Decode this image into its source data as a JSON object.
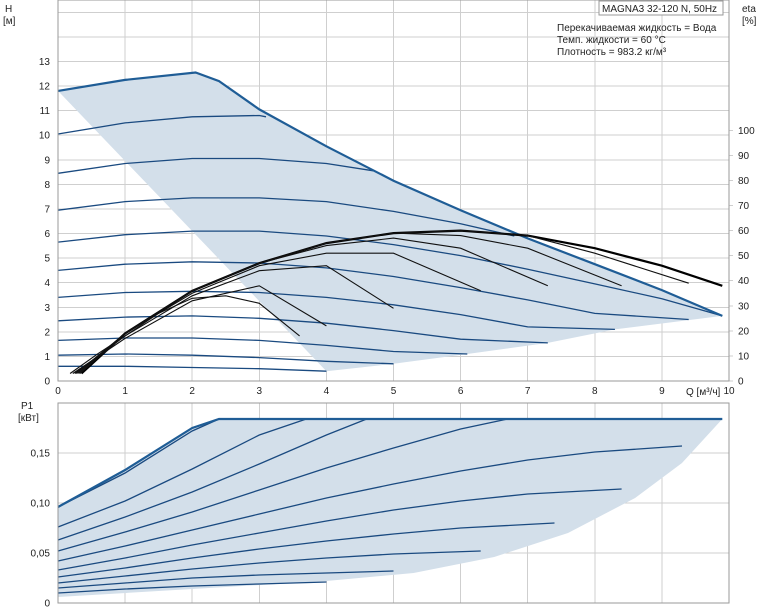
{
  "title": "MAGNA3 32-120 N, 50Hz",
  "conditions": [
    "Перекачиваемая жидкость = Вода",
    "Темп. жидкости = 60 °C",
    "Плотность = 983.2 кг/м³"
  ],
  "colors": {
    "area": "#d3dfea",
    "curve": "#1a4a80",
    "envelope": "#1f5d96",
    "efficiency": "#000000",
    "grid": "#cfcfcf"
  },
  "chart_data": [
    {
      "type": "line",
      "name": "head",
      "ylabel_symbol": "H",
      "ylabel_unit": "[м]",
      "y2label_symbol": "eta",
      "y2label_unit": "[%]",
      "xlabel": "Q [м³/ч]",
      "xlim": [
        0,
        10
      ],
      "ylim": [
        0,
        15.5
      ],
      "y2lim": [
        0,
        152
      ],
      "x_ticks": [
        "0",
        "1",
        "2",
        "3",
        "4",
        "5",
        "6",
        "7",
        "8",
        "9",
        "10"
      ],
      "y_ticks": [
        "0",
        "1",
        "2",
        "3",
        "4",
        "5",
        "6",
        "7",
        "8",
        "9",
        "10",
        "11",
        "12",
        "13"
      ],
      "y2_ticks": [
        "0",
        "10",
        "20",
        "30",
        "40",
        "50",
        "60",
        "70",
        "80",
        "90",
        "100"
      ],
      "grid": true,
      "envelope_upper": [
        [
          0,
          11.8
        ],
        [
          1,
          12.25
        ],
        [
          2.05,
          12.55
        ],
        [
          2.4,
          12.2
        ],
        [
          3,
          11.05
        ],
        [
          4,
          9.55
        ],
        [
          5,
          8.15
        ],
        [
          6,
          6.95
        ],
        [
          7,
          5.8
        ],
        [
          8,
          4.75
        ],
        [
          9,
          3.7
        ],
        [
          9.9,
          2.65
        ]
      ],
      "envelope_lower": [
        [
          9.9,
          2.65
        ],
        [
          8.3,
          2.1
        ],
        [
          7.3,
          1.55
        ],
        [
          6.1,
          1.1
        ],
        [
          5,
          0.7
        ],
        [
          4,
          0.4
        ]
      ],
      "head_curves": [
        {
          "x": [
            0,
            1,
            2,
            3,
            3.1
          ],
          "y": [
            10.05,
            10.5,
            10.75,
            10.8,
            10.75
          ]
        },
        {
          "x": [
            0,
            1,
            2,
            3,
            4,
            4.7
          ],
          "y": [
            8.45,
            8.85,
            9.05,
            9.05,
            8.85,
            8.55
          ]
        },
        {
          "x": [
            0,
            1,
            2,
            3,
            4,
            5,
            6,
            6.8
          ],
          "y": [
            6.95,
            7.3,
            7.45,
            7.45,
            7.3,
            6.9,
            6.4,
            5.9
          ]
        },
        {
          "x": [
            0,
            1,
            2,
            3,
            4,
            5,
            6,
            7,
            8,
            9,
            9.9
          ],
          "y": [
            5.65,
            5.95,
            6.1,
            6.1,
            5.9,
            5.55,
            5.1,
            4.55,
            3.95,
            3.35,
            2.65
          ]
        },
        {
          "x": [
            0,
            1,
            2,
            3,
            4,
            5,
            6,
            7,
            8,
            9.4
          ],
          "y": [
            4.5,
            4.75,
            4.85,
            4.8,
            4.6,
            4.25,
            3.8,
            3.3,
            2.75,
            2.5
          ]
        },
        {
          "x": [
            0,
            1,
            2,
            3,
            4,
            5,
            6,
            7,
            8.3
          ],
          "y": [
            3.4,
            3.6,
            3.65,
            3.6,
            3.4,
            3.1,
            2.7,
            2.2,
            2.1
          ]
        },
        {
          "x": [
            0,
            1,
            2,
            3,
            4,
            5,
            6,
            7.3
          ],
          "y": [
            2.45,
            2.6,
            2.65,
            2.55,
            2.35,
            2.05,
            1.7,
            1.55
          ]
        },
        {
          "x": [
            0,
            1,
            2,
            3,
            4,
            5,
            6.1
          ],
          "y": [
            1.65,
            1.75,
            1.75,
            1.65,
            1.45,
            1.2,
            1.1
          ]
        },
        {
          "x": [
            0,
            1,
            2,
            3,
            4,
            5
          ],
          "y": [
            1.05,
            1.1,
            1.05,
            0.95,
            0.8,
            0.7
          ]
        },
        {
          "x": [
            0,
            1,
            2,
            3,
            4
          ],
          "y": [
            0.6,
            0.6,
            0.55,
            0.5,
            0.4
          ]
        }
      ],
      "efficiency_curves": [
        {
          "bold": true,
          "x": [
            0.35,
            1,
            2,
            3,
            4,
            5,
            6,
            7,
            8,
            9,
            9.9
          ],
          "y": [
            3,
            19,
            36,
            47,
            55,
            59,
            60,
            58,
            53,
            46,
            38
          ]
        },
        {
          "x": [
            0.33,
            1,
            2,
            3,
            4,
            5,
            6,
            7,
            8,
            9.4
          ],
          "y": [
            3,
            19,
            36,
            47,
            55,
            59,
            60,
            58,
            51,
            39
          ]
        },
        {
          "x": [
            0.31,
            1,
            2,
            3,
            4,
            5,
            6,
            7,
            8.4
          ],
          "y": [
            3,
            19,
            36,
            47,
            55,
            59,
            58,
            53,
            38
          ]
        },
        {
          "x": [
            0.29,
            1,
            2,
            3,
            4,
            5,
            6,
            7.3
          ],
          "y": [
            3,
            19,
            36,
            47,
            54,
            57,
            53,
            38
          ]
        },
        {
          "x": [
            0.27,
            1,
            2,
            3,
            4,
            5,
            6.3
          ],
          "y": [
            3,
            19,
            35,
            46,
            51,
            51,
            36
          ]
        },
        {
          "x": [
            0.25,
            1,
            2,
            3,
            4,
            5
          ],
          "y": [
            3,
            18,
            34,
            44,
            46,
            29
          ]
        },
        {
          "x": [
            0.22,
            1,
            2,
            3,
            4
          ],
          "y": [
            3,
            17,
            32,
            38,
            22
          ]
        },
        {
          "x": [
            0.18,
            0.6,
            1,
            1.5,
            2,
            2.5,
            3,
            3.6
          ],
          "y": [
            3,
            11,
            18,
            27,
            33,
            34,
            31,
            18
          ]
        }
      ]
    },
    {
      "type": "line",
      "name": "power",
      "ylabel_symbol": "P1",
      "ylabel_unit": "[кВт]",
      "xlim": [
        0,
        10
      ],
      "ylim": [
        0,
        0.2
      ],
      "y_ticks": [
        "0",
        "0,05",
        "0,10",
        "0,15"
      ],
      "grid": true,
      "envelope_upper": [
        [
          0,
          0.096
        ],
        [
          1,
          0.133
        ],
        [
          2,
          0.175
        ],
        [
          2.4,
          0.184
        ],
        [
          9.9,
          0.184
        ]
      ],
      "envelope_lower": [
        [
          9.9,
          0.184
        ],
        [
          9.3,
          0.14
        ],
        [
          8.6,
          0.105
        ],
        [
          7.6,
          0.07
        ],
        [
          6.5,
          0.046
        ],
        [
          5.3,
          0.03
        ],
        [
          4,
          0.022
        ],
        [
          0,
          0.006
        ]
      ],
      "power_curves": [
        {
          "x": [
            0,
            1,
            2,
            2.4
          ],
          "y": [
            0.096,
            0.13,
            0.172,
            0.184
          ]
        },
        {
          "x": [
            0,
            1,
            2,
            3,
            3.7
          ],
          "y": [
            0.076,
            0.102,
            0.134,
            0.168,
            0.184
          ]
        },
        {
          "x": [
            0,
            1,
            2,
            3,
            4,
            4.6
          ],
          "y": [
            0.063,
            0.086,
            0.111,
            0.139,
            0.168,
            0.184
          ]
        },
        {
          "x": [
            0,
            1,
            2,
            3,
            4,
            5,
            6,
            6.7
          ],
          "y": [
            0.052,
            0.071,
            0.091,
            0.113,
            0.135,
            0.155,
            0.174,
            0.184
          ]
        },
        {
          "x": [
            0,
            1,
            2,
            3,
            4,
            5,
            6,
            7,
            8,
            9.3
          ],
          "y": [
            0.042,
            0.057,
            0.073,
            0.089,
            0.105,
            0.119,
            0.132,
            0.143,
            0.151,
            0.157
          ]
        },
        {
          "x": [
            0,
            1,
            2,
            3,
            4,
            5,
            6,
            7,
            8.4
          ],
          "y": [
            0.033,
            0.045,
            0.058,
            0.07,
            0.082,
            0.093,
            0.102,
            0.109,
            0.114
          ]
        },
        {
          "x": [
            0,
            1,
            2,
            3,
            4,
            5,
            6,
            7.4
          ],
          "y": [
            0.026,
            0.035,
            0.045,
            0.054,
            0.062,
            0.069,
            0.075,
            0.08
          ]
        },
        {
          "x": [
            0,
            1,
            2,
            3,
            4,
            5,
            6.3
          ],
          "y": [
            0.02,
            0.027,
            0.034,
            0.04,
            0.045,
            0.049,
            0.052
          ]
        },
        {
          "x": [
            0,
            1,
            2,
            3,
            4,
            5
          ],
          "y": [
            0.015,
            0.02,
            0.025,
            0.028,
            0.03,
            0.032
          ]
        },
        {
          "x": [
            0,
            1,
            2,
            3,
            4
          ],
          "y": [
            0.01,
            0.014,
            0.017,
            0.019,
            0.021
          ]
        }
      ]
    }
  ]
}
